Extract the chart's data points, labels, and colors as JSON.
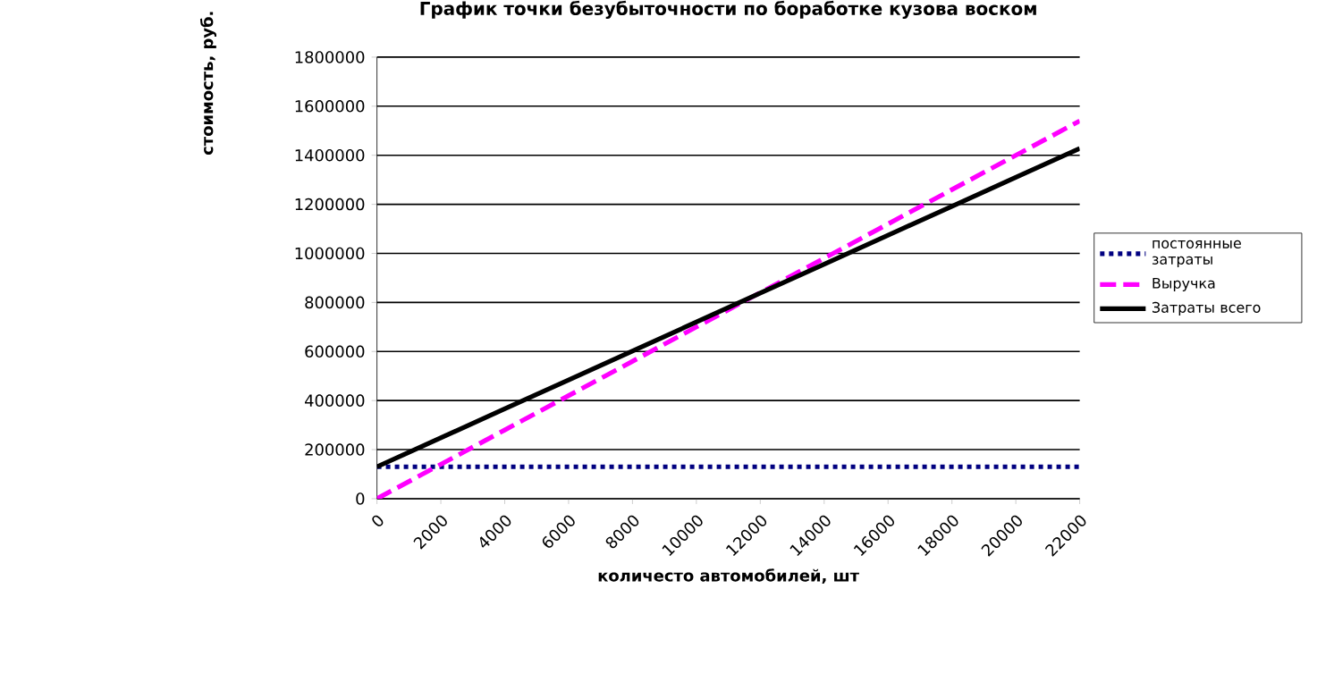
{
  "chart_data": {
    "type": "line",
    "title": "График точки безубыточности по боработке кузова воском",
    "xlabel": "количесто автомобилей, шт",
    "ylabel": "стоимость, руб.",
    "x": [
      0,
      2000,
      4000,
      6000,
      8000,
      10000,
      12000,
      14000,
      16000,
      18000,
      20000,
      22000
    ],
    "series": [
      {
        "name": "постоянные затраты",
        "color": "#000080",
        "line_style": "dotted",
        "values": [
          130000,
          130000,
          130000,
          130000,
          130000,
          130000,
          130000,
          130000,
          130000,
          130000,
          130000,
          130000
        ]
      },
      {
        "name": "Выручка",
        "color": "#ff00ff",
        "line_style": "dashed",
        "values": [
          0,
          140000,
          280000,
          420000,
          560000,
          700000,
          840000,
          980000,
          1120000,
          1260000,
          1400000,
          1540000
        ]
      },
      {
        "name": "Затраты всего",
        "color": "#000000",
        "line_style": "solid",
        "values": [
          130000,
          248000,
          366000,
          484000,
          602000,
          720000,
          838000,
          956000,
          1074000,
          1192000,
          1310000,
          1428000
        ]
      }
    ],
    "xlim": [
      0,
      22000
    ],
    "xticks": [
      0,
      2000,
      4000,
      6000,
      8000,
      10000,
      12000,
      14000,
      16000,
      18000,
      20000,
      22000
    ],
    "ylim": [
      0,
      1800000
    ],
    "yticks": [
      0,
      200000,
      400000,
      600000,
      800000,
      1000000,
      1200000,
      1400000,
      1600000,
      1800000
    ],
    "grid": "y",
    "legend": "right",
    "marker": "none"
  }
}
